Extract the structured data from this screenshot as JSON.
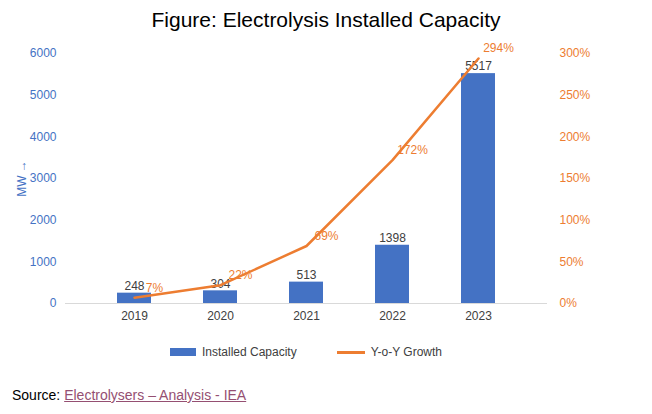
{
  "chart_data": {
    "type": "bar",
    "title": "Figure: Electrolysis Installed Capacity",
    "categories": [
      "2019",
      "2020",
      "2021",
      "2022",
      "2023"
    ],
    "y_label": "MW",
    "series": [
      {
        "name": "Installed Capacity",
        "type": "bar",
        "color": "#4472c4",
        "values": [
          248,
          304,
          513,
          1398,
          5517
        ]
      },
      {
        "name": "Y-o-Y Growth",
        "type": "line",
        "color": "#ed7d31",
        "axis": "y2",
        "values": [
          7,
          22,
          69,
          172,
          294
        ],
        "value_labels": [
          "7%",
          "22%",
          "69%",
          "172%",
          "294%"
        ]
      }
    ],
    "ylim": [
      0,
      6000
    ],
    "yticks": [
      0,
      1000,
      2000,
      3000,
      4000,
      5000,
      6000
    ],
    "y2lim": [
      0,
      300
    ],
    "y2ticks": [
      {
        "value": 0,
        "label": "0%"
      },
      {
        "value": 50,
        "label": "50%"
      },
      {
        "value": 100,
        "label": "100%"
      },
      {
        "value": 150,
        "label": "150%"
      },
      {
        "value": 200,
        "label": "200%"
      },
      {
        "value": 250,
        "label": "250%"
      },
      {
        "value": 300,
        "label": "300%"
      }
    ],
    "data_labels": true,
    "grid": false,
    "legend": "bottom",
    "source_label": "Source:",
    "source": "Electrolysers – Analysis - IEA"
  }
}
